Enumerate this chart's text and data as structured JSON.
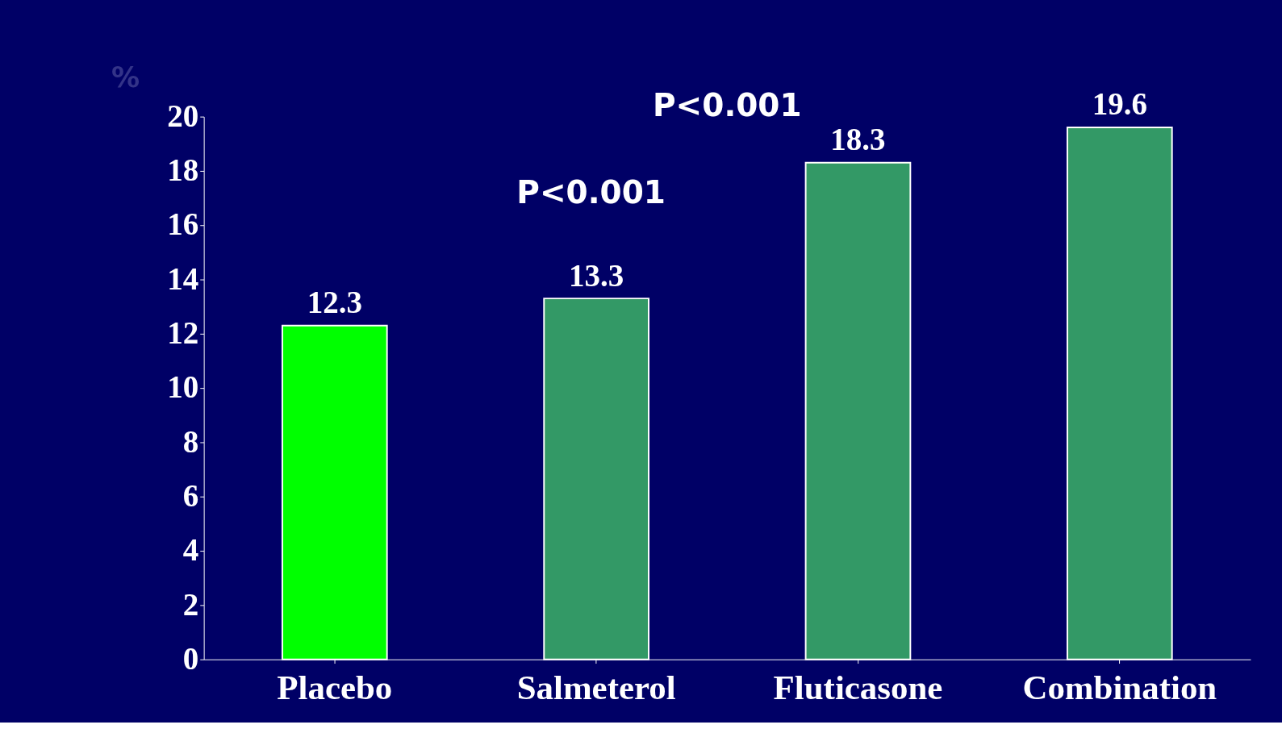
{
  "chart_data": {
    "type": "bar",
    "categories": [
      "Placebo",
      "Salmeterol",
      "Fluticasone",
      "Combination"
    ],
    "values": [
      12.3,
      13.3,
      18.3,
      19.6
    ],
    "colors": [
      "#00ff00",
      "#339966",
      "#339966",
      "#339966"
    ],
    "ylabel": "%",
    "ylim": [
      0,
      20
    ],
    "yticks": [
      0,
      2,
      4,
      6,
      8,
      10,
      12,
      14,
      16,
      18,
      20
    ],
    "data_labels": true,
    "grid": false,
    "annotations": [
      "P<0.001",
      "P<0.001"
    ]
  }
}
